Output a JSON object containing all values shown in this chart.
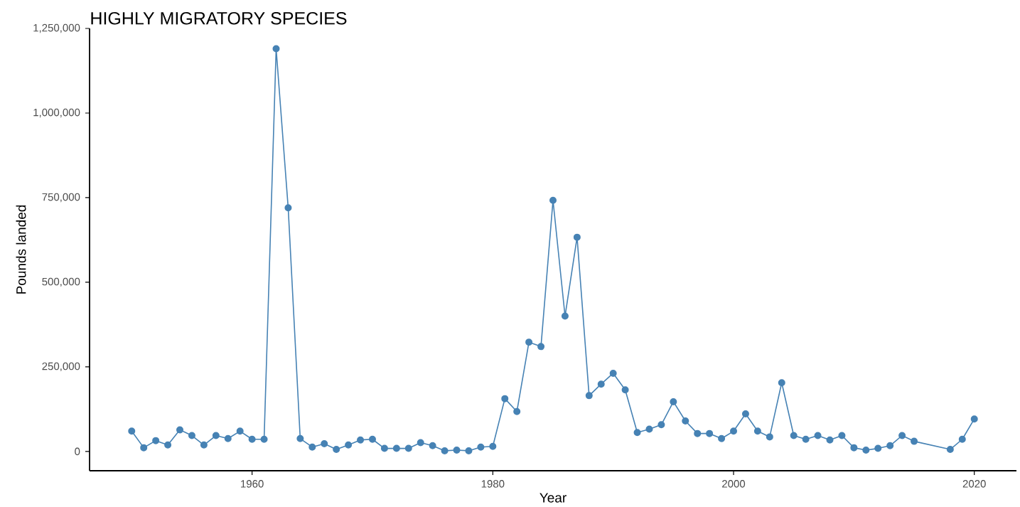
{
  "chart_data": {
    "type": "line",
    "title": "HIGHLY MIGRATORY SPECIES",
    "xlabel": "Year",
    "ylabel": "Pounds landed",
    "x": [
      1950,
      1951,
      1952,
      1953,
      1954,
      1955,
      1956,
      1957,
      1958,
      1959,
      1960,
      1961,
      1962,
      1963,
      1964,
      1965,
      1966,
      1967,
      1968,
      1969,
      1970,
      1971,
      1972,
      1973,
      1974,
      1975,
      1976,
      1977,
      1978,
      1979,
      1980,
      1981,
      1982,
      1983,
      1984,
      1985,
      1986,
      1987,
      1988,
      1989,
      1990,
      1991,
      1992,
      1993,
      1994,
      1995,
      1996,
      1997,
      1998,
      1999,
      2000,
      2001,
      2002,
      2003,
      2004,
      2005,
      2006,
      2007,
      2008,
      2009,
      2010,
      2011,
      2012,
      2013,
      2014,
      2015,
      2018,
      2019,
      2020
    ],
    "series": [
      {
        "color": "#4682b4",
        "values": [
          60000,
          11000,
          32000,
          19000,
          64000,
          47000,
          19000,
          47000,
          38000,
          60000,
          36000,
          36000,
          1190000,
          720000,
          38000,
          13000,
          23000,
          6000,
          19000,
          34000,
          36000,
          9000,
          9000,
          9000,
          26000,
          17000,
          2000,
          4000,
          2000,
          13000,
          15000,
          156000,
          118000,
          323000,
          310000,
          742000,
          400000,
          633000,
          165000,
          199000,
          231000,
          182000,
          56000,
          66000,
          79000,
          147000,
          90000,
          53000,
          53000,
          38000,
          60000,
          111000,
          60000,
          43000,
          203000,
          47000,
          36000,
          47000,
          34000,
          47000,
          11000,
          4000,
          9000,
          17000,
          47000,
          30000,
          6000,
          36000,
          96000
        ]
      }
    ],
    "xlim": [
      1946.5,
      2023.5
    ],
    "ylim": [
      -57000,
      1250000
    ],
    "xticks": [
      1960,
      1980,
      2000,
      2020
    ],
    "yticks": [
      {
        "value": 0,
        "label": "0"
      },
      {
        "value": 250000,
        "label": "250,000"
      },
      {
        "value": 500000,
        "label": "500,000"
      },
      {
        "value": 750000,
        "label": "750,000"
      },
      {
        "value": 1000000,
        "label": "1,000,000"
      },
      {
        "value": 1250000,
        "label": "1,250,000"
      }
    ],
    "grid": false,
    "marker": "circle",
    "line_style": "solid"
  }
}
